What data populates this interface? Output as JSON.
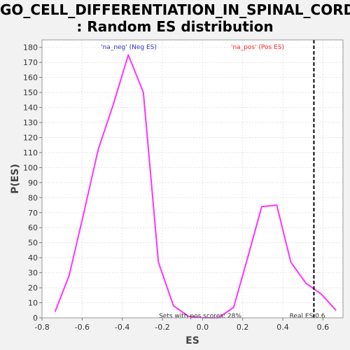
{
  "chart_data": {
    "type": "line",
    "title_lines": [
      "GO_CELL_DIFFERENTIATION_IN_SPINAL_CORD",
      ": Random ES distribution"
    ],
    "xlabel": "ES",
    "ylabel": "P(ES)",
    "xlim": [
      -0.8,
      0.7
    ],
    "ylim": [
      0,
      185
    ],
    "x_ticks": [
      -0.8,
      -0.6,
      -0.4,
      -0.2,
      0.0,
      0.2,
      0.4,
      0.6
    ],
    "x_tick_labels": [
      "-0.8",
      "-0.6",
      "-0.4",
      "-0.2",
      "0.0",
      "0.2",
      "0.4",
      "0.6"
    ],
    "y_ticks": [
      0,
      10,
      20,
      30,
      40,
      50,
      60,
      70,
      80,
      90,
      100,
      110,
      120,
      130,
      140,
      150,
      160,
      170,
      180
    ],
    "grid": true,
    "series": [
      {
        "color": "#ff33ff",
        "x": [
          -0.735,
          -0.665,
          -0.595,
          -0.52,
          -0.445,
          -0.37,
          -0.295,
          -0.22,
          -0.145,
          -0.07,
          0.005,
          0.08,
          0.155,
          0.225,
          0.295,
          0.37,
          0.44,
          0.515,
          0.59,
          0.665
        ],
        "y": [
          4,
          28,
          68,
          112,
          142,
          175,
          150,
          37,
          8,
          1,
          0,
          0,
          7,
          40,
          74,
          75,
          37,
          23,
          16,
          5
        ]
      }
    ],
    "real_es": 0.555,
    "annotations": {
      "neg_label": "'na_neg' (Neg ES)",
      "neg_color": "#3333cc",
      "pos_label": "'na_pos' (Pos ES)",
      "pos_color": "#ff2222",
      "pos_scores": "Sets with pos scores: 28%",
      "real_es": "Real ES 0.6"
    }
  }
}
